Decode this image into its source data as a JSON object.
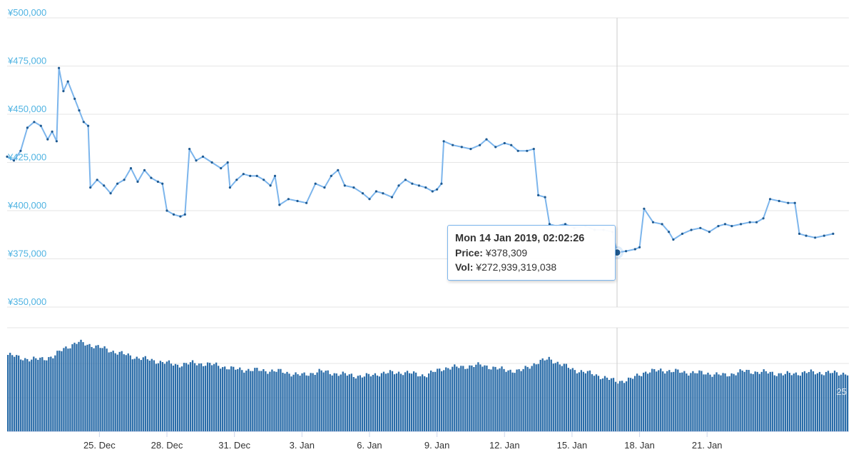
{
  "chart_data": [
    {
      "type": "line",
      "title": "",
      "xlabel": "",
      "ylabel": "",
      "ylim": [
        350000,
        500000
      ],
      "y_ticks": [
        "¥350,000",
        "¥375,000",
        "¥400,000",
        "¥425,000",
        "¥450,000",
        "¥475,000",
        "¥500,000"
      ],
      "x_ticks": [
        "25. Dec",
        "28. Dec",
        "31. Dec",
        "3. Jan",
        "6. Jan",
        "9. Jan",
        "12. Jan",
        "15. Jan",
        "18. Jan",
        "21. Jan"
      ],
      "x_range_days": [
        -4.1,
        33.3
      ],
      "grid": true,
      "legend": "none",
      "series": [
        {
          "color": "#7cb5ec",
          "marker_color": "#1f5a91",
          "points": [
            [
              -4.1,
              428000
            ],
            [
              -3.8,
              426000
            ],
            [
              -3.5,
              431000
            ],
            [
              -3.2,
              443000
            ],
            [
              -2.9,
              446000
            ],
            [
              -2.6,
              444000
            ],
            [
              -2.3,
              437000
            ],
            [
              -2.1,
              441000
            ],
            [
              -1.9,
              436000
            ],
            [
              -1.8,
              474000
            ],
            [
              -1.6,
              462000
            ],
            [
              -1.4,
              467000
            ],
            [
              -1.1,
              458000
            ],
            [
              -0.9,
              452000
            ],
            [
              -0.7,
              446000
            ],
            [
              -0.5,
              444000
            ],
            [
              -0.4,
              412000
            ],
            [
              -0.1,
              416000
            ],
            [
              0.2,
              413000
            ],
            [
              0.5,
              409000
            ],
            [
              0.8,
              414000
            ],
            [
              1.1,
              416000
            ],
            [
              1.4,
              422000
            ],
            [
              1.7,
              415000
            ],
            [
              2.0,
              421000
            ],
            [
              2.3,
              417000
            ],
            [
              2.6,
              415000
            ],
            [
              2.8,
              414000
            ],
            [
              3.0,
              400000
            ],
            [
              3.3,
              398000
            ],
            [
              3.6,
              397000
            ],
            [
              3.8,
              398000
            ],
            [
              4.0,
              432000
            ],
            [
              4.3,
              426000
            ],
            [
              4.6,
              428000
            ],
            [
              5.0,
              425000
            ],
            [
              5.4,
              422000
            ],
            [
              5.7,
              425000
            ],
            [
              5.8,
              412000
            ],
            [
              6.1,
              416000
            ],
            [
              6.4,
              419000
            ],
            [
              6.7,
              418000
            ],
            [
              7.0,
              418000
            ],
            [
              7.3,
              416000
            ],
            [
              7.6,
              413000
            ],
            [
              7.8,
              418000
            ],
            [
              8.0,
              403000
            ],
            [
              8.4,
              406000
            ],
            [
              8.8,
              405000
            ],
            [
              9.2,
              404000
            ],
            [
              9.6,
              414000
            ],
            [
              10.0,
              412000
            ],
            [
              10.3,
              418000
            ],
            [
              10.6,
              421000
            ],
            [
              10.9,
              413000
            ],
            [
              11.3,
              412000
            ],
            [
              11.7,
              409000
            ],
            [
              12.0,
              406000
            ],
            [
              12.3,
              410000
            ],
            [
              12.6,
              409000
            ],
            [
              13.0,
              407000
            ],
            [
              13.3,
              413000
            ],
            [
              13.6,
              416000
            ],
            [
              13.9,
              414000
            ],
            [
              14.2,
              413000
            ],
            [
              14.5,
              412000
            ],
            [
              14.8,
              410000
            ],
            [
              15.0,
              411000
            ],
            [
              15.2,
              414000
            ],
            [
              15.3,
              436000
            ],
            [
              15.7,
              434000
            ],
            [
              16.1,
              433000
            ],
            [
              16.5,
              432000
            ],
            [
              16.9,
              434000
            ],
            [
              17.2,
              437000
            ],
            [
              17.6,
              433000
            ],
            [
              18.0,
              435000
            ],
            [
              18.3,
              434000
            ],
            [
              18.6,
              431000
            ],
            [
              19.0,
              431000
            ],
            [
              19.3,
              432000
            ],
            [
              19.5,
              408000
            ],
            [
              19.8,
              407000
            ],
            [
              20.0,
              393000
            ],
            [
              20.3,
              392000
            ],
            [
              20.7,
              393000
            ],
            [
              21.1,
              391000
            ],
            [
              21.6,
              392000
            ],
            [
              22.0,
              390000
            ],
            [
              22.4,
              390000
            ],
            [
              22.8,
              389000
            ],
            [
              23.0,
              378309
            ],
            [
              23.4,
              379000
            ],
            [
              23.8,
              380000
            ],
            [
              24.0,
              381000
            ],
            [
              24.2,
              401000
            ],
            [
              24.6,
              394000
            ],
            [
              25.0,
              393000
            ],
            [
              25.3,
              389000
            ],
            [
              25.5,
              385000
            ],
            [
              25.9,
              388000
            ],
            [
              26.3,
              390000
            ],
            [
              26.7,
              391000
            ],
            [
              27.1,
              389000
            ],
            [
              27.5,
              392000
            ],
            [
              27.8,
              393000
            ],
            [
              28.1,
              392000
            ],
            [
              28.5,
              393000
            ],
            [
              28.9,
              394000
            ],
            [
              29.2,
              394000
            ],
            [
              29.5,
              396000
            ],
            [
              29.8,
              406000
            ],
            [
              30.2,
              405000
            ],
            [
              30.6,
              404000
            ],
            [
              30.9,
              404000
            ],
            [
              31.1,
              388000
            ],
            [
              31.4,
              387000
            ],
            [
              31.8,
              386000
            ],
            [
              32.2,
              387000
            ],
            [
              32.6,
              388000
            ]
          ]
        }
      ]
    },
    {
      "type": "bar",
      "title": "",
      "y_ticks": [],
      "x_range_days": [
        -4.1,
        33.3
      ],
      "series": [
        {
          "color": "#2a6ca8",
          "level_points": [
            [
              -4.1,
              0.74
            ],
            [
              -3.0,
              0.69
            ],
            [
              -2.0,
              0.72
            ],
            [
              -1.6,
              0.8
            ],
            [
              -0.9,
              0.86
            ],
            [
              -0.3,
              0.83
            ],
            [
              0.5,
              0.78
            ],
            [
              1.5,
              0.72
            ],
            [
              2.5,
              0.68
            ],
            [
              3.5,
              0.64
            ],
            [
              4.2,
              0.66
            ],
            [
              5.2,
              0.64
            ],
            [
              6.0,
              0.6
            ],
            [
              7.0,
              0.59
            ],
            [
              8.0,
              0.58
            ],
            [
              9.0,
              0.54
            ],
            [
              9.8,
              0.58
            ],
            [
              10.8,
              0.55
            ],
            [
              11.8,
              0.53
            ],
            [
              12.5,
              0.56
            ],
            [
              13.5,
              0.57
            ],
            [
              14.5,
              0.54
            ],
            [
              15.3,
              0.61
            ],
            [
              16.0,
              0.62
            ],
            [
              17.0,
              0.64
            ],
            [
              17.8,
              0.6
            ],
            [
              18.7,
              0.58
            ],
            [
              19.4,
              0.66
            ],
            [
              20.0,
              0.7
            ],
            [
              21.0,
              0.6
            ],
            [
              22.0,
              0.55
            ],
            [
              23.0,
              0.48
            ],
            [
              23.6,
              0.5
            ],
            [
              24.2,
              0.57
            ],
            [
              25.0,
              0.59
            ],
            [
              26.0,
              0.57
            ],
            [
              27.0,
              0.56
            ],
            [
              27.8,
              0.54
            ],
            [
              28.6,
              0.58
            ],
            [
              29.6,
              0.57
            ],
            [
              30.5,
              0.55
            ],
            [
              31.5,
              0.57
            ],
            [
              33.0,
              0.56
            ]
          ]
        }
      ]
    }
  ],
  "tooltip": {
    "title": "Mon 14 Jan 2019, 02:02:26",
    "price_label": "Price:",
    "price_value": "¥378,309",
    "vol_label": "Vol:",
    "vol_value": "¥272,939,319,038"
  },
  "volume_axis_label": "25"
}
